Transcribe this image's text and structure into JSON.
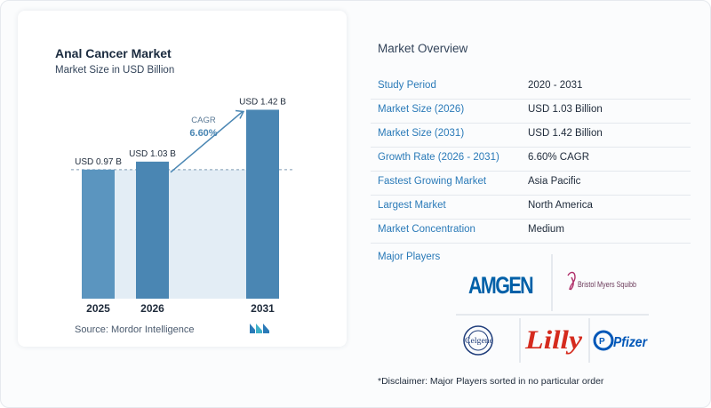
{
  "chart_data": {
    "type": "bar",
    "title": "Anal Cancer Market",
    "subtitle": "Market Size in USD Billion",
    "categories": [
      "2025",
      "2026",
      "2031"
    ],
    "values": [
      0.97,
      1.03,
      1.42
    ],
    "value_labels": [
      "USD 0.97 B",
      "USD 1.03 B",
      "USD 1.42 B"
    ],
    "cagr_label": "CAGR",
    "cagr_value": "6.60%",
    "ylim": [
      0,
      1.55
    ],
    "grid": false,
    "colors": {
      "bar": "#5b95bf",
      "bar_dark": "#4a86b3",
      "band": "#e3edf5",
      "accent": "#4a86b3"
    }
  },
  "source": "Source:  Mordor Intelligence",
  "overview": {
    "title": "Market Overview",
    "rows": [
      {
        "label": "Study Period",
        "value": "2020 - 2031"
      },
      {
        "label": "Market Size (2026)",
        "value": "USD 1.03 Billion"
      },
      {
        "label": "Market Size (2031)",
        "value": "USD 1.42 Billion"
      },
      {
        "label": "Growth Rate (2026 - 2031)",
        "value": "6.60% CAGR"
      },
      {
        "label": "Fastest Growing Market",
        "value": "Asia Pacific"
      },
      {
        "label": "Largest Market",
        "value": "North America"
      },
      {
        "label": "Market Concentration",
        "value": "Medium"
      }
    ]
  },
  "players": {
    "title": "Major Players",
    "logos": {
      "amgen": "AMGEN",
      "bms": "Bristol Myers Squibb",
      "celgene": "Celgene",
      "lilly": "Lilly",
      "pfizer": "Pfizer"
    }
  },
  "disclaimer": "*Disclaimer: Major Players sorted in no particular order"
}
